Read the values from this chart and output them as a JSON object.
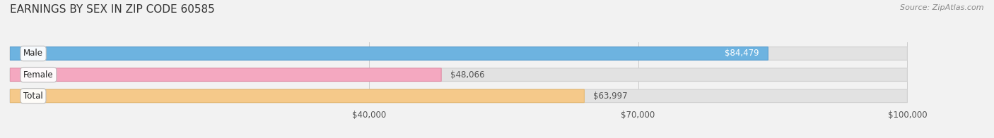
{
  "title": "EARNINGS BY SEX IN ZIP CODE 60585",
  "source": "Source: ZipAtlas.com",
  "categories": [
    "Male",
    "Female",
    "Total"
  ],
  "values": [
    84479,
    48066,
    63997
  ],
  "bar_colors": [
    "#6db3e0",
    "#f4a8c0",
    "#f5c98a"
  ],
  "bar_edge_colors": [
    "#5a9ecf",
    "#e090a8",
    "#e5b870"
  ],
  "value_labels": [
    "$84,479",
    "$48,066",
    "$63,997"
  ],
  "value_label_colors": [
    "#ffffff",
    "#555555",
    "#555555"
  ],
  "value_label_inside": [
    true,
    false,
    false
  ],
  "xmin": 40000,
  "xmax": 100000,
  "xticks": [
    40000,
    70000,
    100000
  ],
  "xticklabels": [
    "$40,000",
    "$70,000",
    "$100,000"
  ],
  "background_color": "#f2f2f2",
  "bar_bg_color": "#e2e2e2",
  "title_fontsize": 11,
  "label_fontsize": 8.5,
  "category_fontsize": 8.5,
  "value_fontsize": 8.5,
  "source_fontsize": 8
}
